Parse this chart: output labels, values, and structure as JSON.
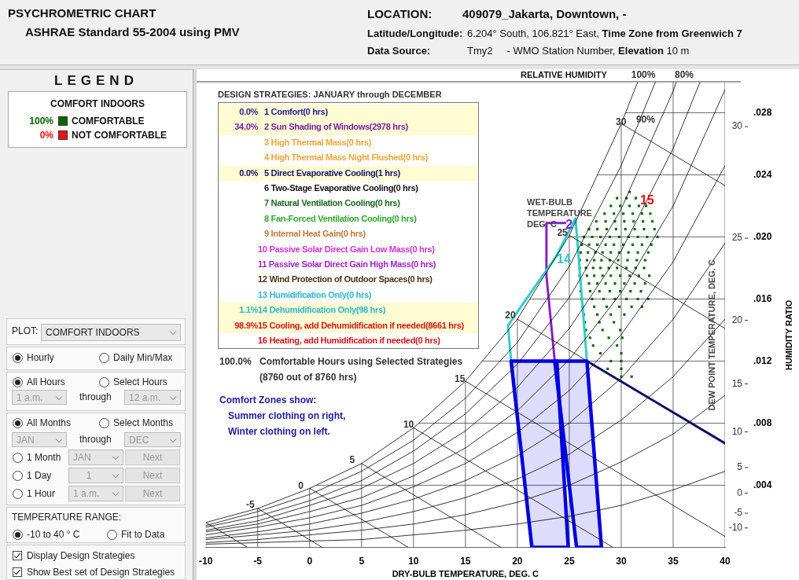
{
  "chart_data": {
    "type": "line",
    "title": "PSYCHROMETRIC CHART",
    "subtitle": "ASHRAE Standard 55-2004 using PMV",
    "xlabel": "DRY-BULB TEMPERATURE, DEG. C",
    "ylabel": "HUMIDITY RATIO",
    "y2label": "DEW POINT TEMPERATURE, DEG. C",
    "legend_title": "COMFORT INDOORS",
    "legend": "left",
    "grid": true,
    "xlim": [
      -10,
      40
    ],
    "xticks": [
      -10,
      -5,
      0,
      5,
      10,
      15,
      20,
      25,
      30,
      35,
      40
    ],
    "ylim": [
      0,
      0.03
    ],
    "yticks": [
      {
        "value": 0.004,
        "label": ".004"
      },
      {
        "value": 0.008,
        "label": ".008"
      },
      {
        "value": 0.012,
        "label": ".012"
      },
      {
        "value": 0.016,
        "label": ".016"
      },
      {
        "value": 0.02,
        "label": ".020"
      },
      {
        "value": 0.024,
        "label": ".024"
      },
      {
        "value": 0.028,
        "label": ".028"
      }
    ],
    "x": [
      -10,
      -5,
      0,
      5,
      10,
      15,
      20,
      25,
      30,
      35,
      40
    ],
    "series": [
      {
        "type": "line",
        "color": "#000000",
        "x": [
          -10,
          -5,
          0,
          5,
          10,
          15,
          20,
          25,
          30,
          31.6
        ],
        "values": [
          0.0016,
          0.0025,
          0.0038,
          0.0054,
          0.0077,
          0.0107,
          0.0147,
          0.0201,
          0.0273,
          0.03
        ]
      },
      {
        "type": "line",
        "color": "#000000",
        "x": [
          -10,
          -5,
          0,
          5,
          10,
          15,
          20,
          25,
          30,
          33.3
        ],
        "values": [
          0.0014,
          0.0023,
          0.0034,
          0.0049,
          0.0069,
          0.0096,
          0.0132,
          0.0181,
          0.0246,
          0.03
        ]
      },
      {
        "type": "line",
        "color": "#000000",
        "x": [
          -10,
          -5,
          0,
          5,
          10,
          15,
          20,
          25,
          30,
          35,
          35.3
        ],
        "values": [
          0.0013,
          0.002,
          0.003,
          0.0043,
          0.0062,
          0.0086,
          0.0118,
          0.0161,
          0.0218,
          0.0294,
          0.03
        ]
      },
      {
        "type": "line",
        "color": "#000000",
        "x": [
          -10,
          -5,
          0,
          5,
          10,
          15,
          20,
          25,
          30,
          35,
          37.6
        ],
        "values": [
          0.0011,
          0.0017,
          0.0027,
          0.0038,
          0.0054,
          0.0075,
          0.0103,
          0.0141,
          0.0191,
          0.0257,
          0.03
        ]
      },
      {
        "type": "line",
        "color": "#000000",
        "values": [
          0.001,
          0.0015,
          0.0023,
          0.0032,
          0.0046,
          0.0064,
          0.0088,
          0.0121,
          0.0164,
          0.022,
          0.0295
        ]
      },
      {
        "type": "line",
        "color": "#000000",
        "values": [
          0.0008,
          0.0013,
          0.0019,
          0.0027,
          0.0039,
          0.0054,
          0.0074,
          0.0101,
          0.0137,
          0.0184,
          0.0246
        ]
      },
      {
        "type": "line",
        "color": "#000000",
        "values": [
          0.0006,
          0.001,
          0.0015,
          0.0022,
          0.0031,
          0.0043,
          0.0059,
          0.008,
          0.0109,
          0.0147,
          0.0196
        ]
      },
      {
        "type": "line",
        "color": "#000000",
        "values": [
          0.0005,
          0.0008,
          0.0011,
          0.0016,
          0.0023,
          0.0032,
          0.0044,
          0.006,
          0.0082,
          0.011,
          0.0147
        ]
      },
      {
        "type": "line",
        "color": "#000000",
        "values": [
          0.0003,
          0.0005,
          0.0008,
          0.0011,
          0.0015,
          0.0021,
          0.0029,
          0.004,
          0.0055,
          0.0073,
          0.0098
        ]
      },
      {
        "type": "line",
        "color": "#000000",
        "values": [
          0.0002,
          0.0003,
          0.0004,
          0.0005,
          0.0008,
          0.0011,
          0.0015,
          0.002,
          0.0027,
          0.0037,
          0.0049
        ]
      },
      {
        "type": "line",
        "color": "#000000",
        "x": [
          -10,
          -6
        ],
        "values": [
          0.0016,
          0
        ]
      },
      {
        "type": "line",
        "color": "#000000",
        "x": [
          -5,
          1.2
        ],
        "values": [
          0.0025,
          0
        ]
      },
      {
        "type": "line",
        "color": "#000000",
        "x": [
          0,
          9.5
        ],
        "values": [
          0.0038,
          0
        ]
      },
      {
        "type": "line",
        "color": "#000000",
        "x": [
          5,
          18.4
        ],
        "values": [
          0.0054,
          0
        ]
      },
      {
        "type": "line",
        "color": "#000000",
        "x": [
          10,
          29.2
        ],
        "values": [
          0.0077,
          0
        ]
      },
      {
        "type": "line",
        "color": "#000000",
        "x": [
          15,
          40
        ],
        "values": [
          0.0107,
          0.0007
        ]
      },
      {
        "type": "line",
        "color": "#000000",
        "x": [
          20,
          40
        ],
        "values": [
          0.0147,
          0.0067
        ]
      },
      {
        "type": "line",
        "color": "#000000",
        "x": [
          25,
          40
        ],
        "values": [
          0.0201,
          0.0141
        ]
      },
      {
        "type": "line",
        "color": "#000000",
        "x": [
          30,
          40
        ],
        "values": [
          0.0273,
          0.0233
        ]
      },
      {
        "type": "area",
        "color": "#0000e0",
        "x": [
          19.4,
          23.8,
          24.9,
          21.4,
          19.4
        ],
        "values": [
          0.012,
          0.012,
          0,
          0,
          0.012
        ]
      },
      {
        "type": "area",
        "color": "#0000e0",
        "x": [
          23.6,
          26.7,
          28.1,
          25.7,
          23.6
        ],
        "values": [
          0.012,
          0.012,
          0,
          0,
          0.012
        ]
      },
      {
        "type": "line",
        "color": "#33cccc",
        "x": [
          19.4,
          19.1,
          21.7,
          23.7,
          25.6,
          26.7
        ],
        "values": [
          0.012,
          0.0143,
          0.0168,
          0.0187,
          0.0212,
          0.012
        ]
      },
      {
        "type": "line",
        "color": "#8a1fc9",
        "x": [
          23.6,
          22.8,
          22.8,
          24.6
        ],
        "values": [
          0.012,
          0.0175,
          0.0209,
          0.0209
        ]
      },
      {
        "type": "line",
        "color": "#1a1a8c",
        "x": [
          26.7,
          40
        ],
        "values": [
          0.012,
          0.0067
        ]
      },
      {
        "type": "scatter",
        "name": "COMFORTABLE",
        "color": "#006600",
        "marker": "square",
        "x": [
          30.8,
          29.6,
          30.5,
          31.4,
          29.0,
          29.9,
          30.8,
          31.7,
          32.4,
          28.4,
          29.3,
          30.2,
          31.1,
          32.0,
          32.8,
          27.6,
          28.5,
          29.4,
          30.3,
          31.2,
          32.1,
          33.0,
          26.9,
          27.7,
          28.6,
          29.5,
          30.4,
          31.3,
          32.2,
          33.2,
          26.4,
          27.2,
          28.0,
          28.9,
          29.8,
          30.7,
          31.6,
          32.5,
          33.5,
          26.2,
          26.9,
          27.7,
          28.5,
          29.3,
          30.2,
          31.1,
          32.0,
          32.9,
          26.1,
          26.8,
          27.5,
          28.2,
          29.0,
          29.8,
          30.7,
          31.6,
          32.6,
          26.0,
          26.7,
          27.4,
          28.1,
          28.9,
          29.7,
          30.6,
          31.5,
          32.3,
          26.0,
          26.6,
          27.3,
          28.0,
          28.8,
          29.6,
          30.5,
          31.4,
          32.2,
          26.0,
          26.7,
          27.4,
          28.2,
          29.0,
          29.9,
          30.8,
          31.7,
          32.7,
          26.1,
          26.9,
          27.7,
          28.5,
          29.4,
          30.3,
          31.3,
          32.3,
          26.1,
          27.0,
          27.9,
          28.9,
          29.9,
          30.9,
          31.9,
          26.2,
          27.2,
          28.3,
          29.4,
          30.5,
          31.6,
          32.6,
          26.3,
          27.4,
          28.6,
          29.8,
          31.0,
          32.0,
          26.4,
          27.7,
          29.0,
          30.3,
          26.5,
          27.9,
          29.3,
          26.6,
          28.2,
          29.9,
          27.0,
          28.8,
          30.1,
          27.3,
          29.6,
          28.0,
          30.0,
          29.0,
          30.0,
          30.0,
          28.7,
          30.0,
          31.0
        ],
        "values": [
          0.0229,
          0.0225,
          0.0225,
          0.0225,
          0.022,
          0.022,
          0.022,
          0.022,
          0.022,
          0.0215,
          0.0215,
          0.0215,
          0.0215,
          0.0215,
          0.0215,
          0.021,
          0.021,
          0.021,
          0.021,
          0.021,
          0.021,
          0.021,
          0.0205,
          0.0205,
          0.0205,
          0.0205,
          0.0205,
          0.0205,
          0.0205,
          0.0205,
          0.02,
          0.02,
          0.02,
          0.02,
          0.02,
          0.02,
          0.02,
          0.02,
          0.02,
          0.0195,
          0.0195,
          0.0195,
          0.0195,
          0.0195,
          0.0195,
          0.0195,
          0.0195,
          0.0195,
          0.019,
          0.019,
          0.019,
          0.019,
          0.019,
          0.019,
          0.019,
          0.019,
          0.019,
          0.0185,
          0.0185,
          0.0185,
          0.0185,
          0.0185,
          0.0185,
          0.0185,
          0.0185,
          0.0185,
          0.018,
          0.018,
          0.018,
          0.018,
          0.018,
          0.018,
          0.018,
          0.018,
          0.018,
          0.0175,
          0.0175,
          0.0175,
          0.0175,
          0.0175,
          0.0175,
          0.0175,
          0.0175,
          0.0175,
          0.017,
          0.017,
          0.017,
          0.017,
          0.017,
          0.017,
          0.017,
          0.017,
          0.0165,
          0.0165,
          0.0165,
          0.0165,
          0.0165,
          0.0165,
          0.0165,
          0.016,
          0.016,
          0.016,
          0.016,
          0.016,
          0.016,
          0.016,
          0.0155,
          0.0155,
          0.0155,
          0.0155,
          0.0155,
          0.0155,
          0.015,
          0.015,
          0.015,
          0.015,
          0.0145,
          0.0145,
          0.0145,
          0.014,
          0.014,
          0.014,
          0.0135,
          0.0135,
          0.0135,
          0.013,
          0.013,
          0.0125,
          0.0125,
          0.012,
          0.012,
          0.0115,
          0.0115,
          0.011,
          0.011
        ]
      },
      {
        "type": "scatter",
        "name": "NOT COMFORTABLE",
        "color": "#ee1111",
        "marker": "square",
        "values": [
          null,
          null,
          null,
          null,
          null,
          null,
          null,
          null,
          null,
          null,
          null
        ]
      }
    ],
    "annotations": [
      "LOCATION:",
      "409079_Jakarta, Downtown, -",
      "Latitude/Longitude:",
      "6.204° South, 106.821° East,",
      "Time Zone from Greenwich 7",
      "Data Source:",
      "Tmy2",
      "- WMO Station Number,",
      "Elevation",
      "10 m",
      "LEGEND",
      "100%",
      "0%",
      "DESIGN STRATEGIES:  JANUARY through DECEMBER",
      "0.0%",
      "1 Comfort(0 hrs)",
      "34.0%",
      "2 Sun Shading of Windows(2978 hrs)",
      "3 High Thermal Mass(0 hrs)",
      "4 High Thermal Mass Night Flushed(0 hrs)",
      "0.0%",
      "5 Direct Evaporative Cooling(1 hrs)",
      "6 Two-Stage Evaporative Cooling(0 hrs)",
      "7 Natural Ventilation Cooling(0 hrs)",
      "8 Fan-Forced Ventilation Cooling(0 hrs)",
      "9 Internal Heat Gain(0 hrs)",
      "10 Passive Solar Direct Gain Low Mass(0 hrs)",
      "11 Passive Solar Direct Gain High Mass(0 hrs)",
      "12 Wind Protection of Outdoor Spaces(0 hrs)",
      "13 Humidification Only(0 hrs)",
      "1.1%",
      "14 Dehumidification Only(98 hrs)",
      "98.9%",
      "15 Cooling, add Dehumidification if needed(8661 hrs)",
      "16 Heating, add Humidification if needed(0 hrs)",
      "100.0%",
      "Comfortable Hours using Selected Strategies",
      "(8760 out of 8760 hrs)",
      "Comfort Zones show:",
      "Summer clothing on right,",
      "Winter clothing on left.",
      "RELATIVE HUMIDITY",
      "WET-BULB TEMPERATURE DEG. C",
      "PLOT:",
      "COMFORT INDOORS",
      "Hourly",
      "Daily Min/Max",
      "All Hours",
      "Select Hours",
      "1 a.m.",
      "through",
      "12 a.m.",
      "All Months",
      "Select Months",
      "JAN",
      "through",
      "DEC",
      "1 Month",
      "JAN",
      "Next",
      "1 Day",
      "1",
      "Next",
      "1 Hour",
      "1 a.m.",
      "Next",
      "TEMPERATURE RANGE:",
      "-10 to 40 ° C",
      "Fit to Data",
      "Display Design Strategies",
      "Show Best set of Design Strategies",
      "-5",
      "0",
      "5",
      "10",
      "15",
      "20",
      "25",
      "30",
      "90%",
      "100%",
      "80%",
      "14",
      "2",
      "15",
      "30",
      "25",
      "20",
      "15",
      "10",
      "5",
      "0",
      "-5",
      "-10"
    ]
  }
}
